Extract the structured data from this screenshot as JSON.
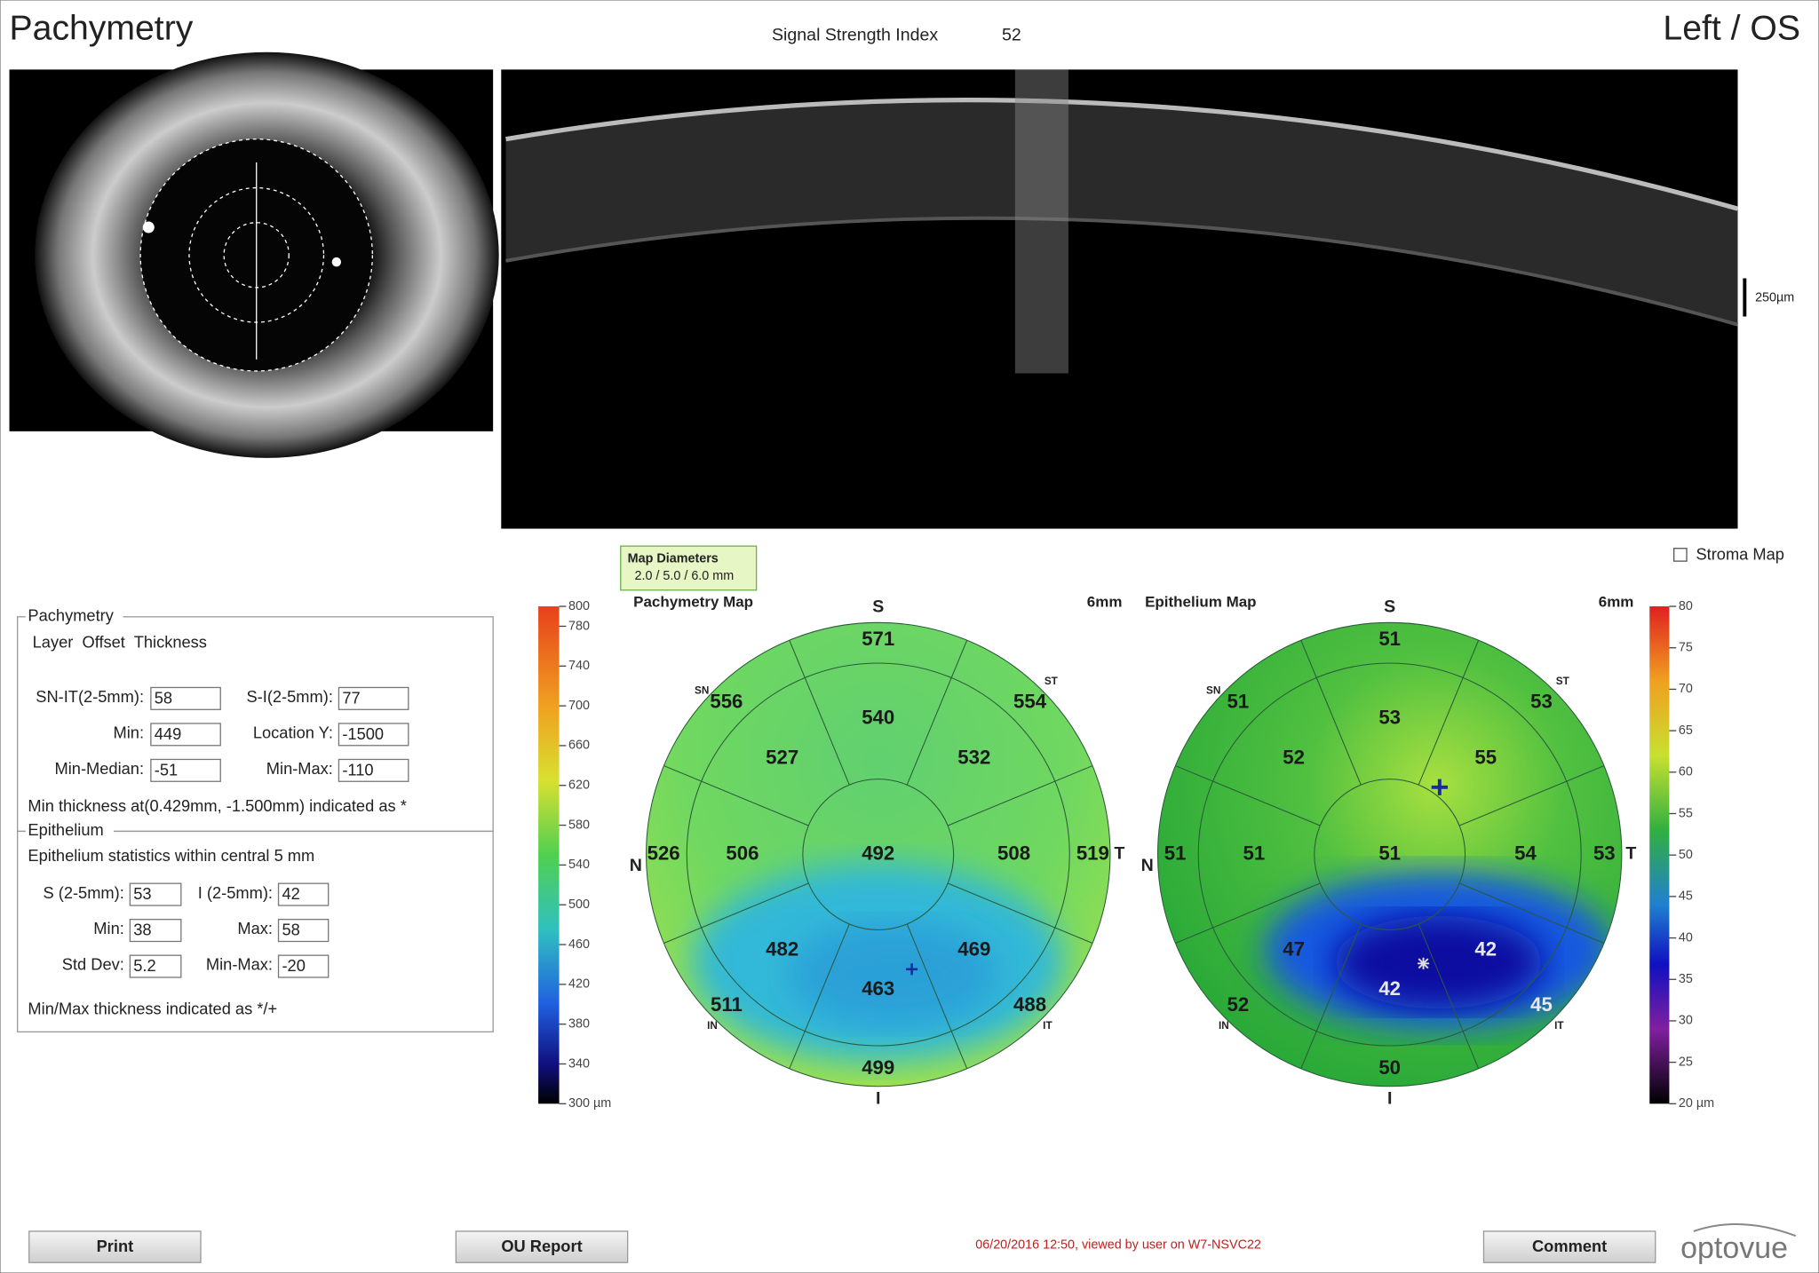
{
  "header": {
    "title": "Pachymetry",
    "signal_label": "Signal Strength Index",
    "signal_value": "52",
    "eye": "Left / OS"
  },
  "oct_scale": "250µm",
  "map_diameters": {
    "title": "Map Diameters",
    "value": "2.0 / 5.0 / 6.0 mm"
  },
  "stroma_map": "Stroma Map",
  "pachymetry_panel": {
    "legend": "Pachymetry",
    "subtitle": "Layer  Offset  Thickness",
    "fields": [
      {
        "label": "SN-IT(2-5mm):",
        "value": "58"
      },
      {
        "label": "S-I(2-5mm):",
        "value": "77"
      },
      {
        "label": "Min:",
        "value": "449"
      },
      {
        "label": "Location Y:",
        "value": "-1500"
      },
      {
        "label": "Min-Median:",
        "value": "-51"
      },
      {
        "label": "Min-Max:",
        "value": "-110"
      }
    ],
    "note": "Min thickness at(0.429mm, -1.500mm) indicated as *"
  },
  "epithelium_panel": {
    "legend": "Epithelium",
    "subtitle": "Epithelium statistics within central 5 mm",
    "fields": [
      {
        "label": "S (2-5mm):",
        "value": "53"
      },
      {
        "label": "I (2-5mm):",
        "value": "42"
      },
      {
        "label": "Min:",
        "value": "38"
      },
      {
        "label": "Max:",
        "value": "58"
      },
      {
        "label": "Std Dev:",
        "value": "5.2"
      },
      {
        "label": "Min-Max:",
        "value": "-20"
      }
    ],
    "note": "Min/Max thickness indicated as */+"
  },
  "pachymetry_scale": [
    "800",
    "780",
    "740",
    "700",
    "660",
    "620",
    "580",
    "540",
    "500",
    "460",
    "420",
    "380",
    "340",
    "300 µm"
  ],
  "epithelium_scale": [
    "80",
    "75",
    "70",
    "65",
    "60",
    "55",
    "50",
    "45",
    "40",
    "35",
    "30",
    "25",
    "20 µm"
  ],
  "directions": {
    "superior": "S",
    "nasal": "N",
    "temporal": "T",
    "inferior": "I"
  },
  "sector_tags": {
    "sn": "SN",
    "st": "ST",
    "in": "IN",
    "it": "IT"
  },
  "pachymetry_map": {
    "title": "Pachymetry Map",
    "size": "6mm",
    "center": "492",
    "inner": [
      "540",
      "532",
      "508",
      "469",
      "463",
      "482",
      "506",
      "527"
    ],
    "outer": [
      "571",
      "554",
      "519",
      "488",
      "499",
      "511",
      "526",
      "556"
    ]
  },
  "epithelium_map": {
    "title": "Epithelium Map",
    "size": "6mm",
    "center": "51",
    "inner": [
      "53",
      "55",
      "54",
      "42",
      "42",
      "47",
      "51",
      "52"
    ],
    "outer": [
      "51",
      "53",
      "53",
      "45",
      "50",
      "52",
      "51",
      "51"
    ]
  },
  "buttons": {
    "print": "Print",
    "ou_report": "OU Report",
    "comment": "Comment"
  },
  "footer": "06/20/2016 12:50, viewed by user on W7-NSVC22",
  "logo": "optovue"
}
